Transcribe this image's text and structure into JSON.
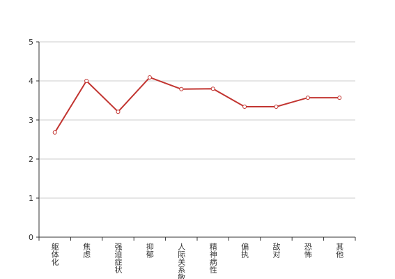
{
  "chart_data": {
    "type": "line",
    "categories": [
      "躯体化",
      "焦虑",
      "强迫症状",
      "抑郁",
      "人际关系敏感",
      "精神病性",
      "偏执",
      "敌对",
      "恐怖",
      "其他"
    ],
    "values": [
      2.68,
      4.0,
      3.21,
      4.09,
      3.79,
      3.8,
      3.34,
      3.34,
      3.57,
      3.57
    ],
    "color": "#c23531",
    "ylim": [
      0,
      5
    ],
    "yticks": [
      0,
      1,
      2,
      3,
      4,
      5
    ],
    "grid": true
  }
}
